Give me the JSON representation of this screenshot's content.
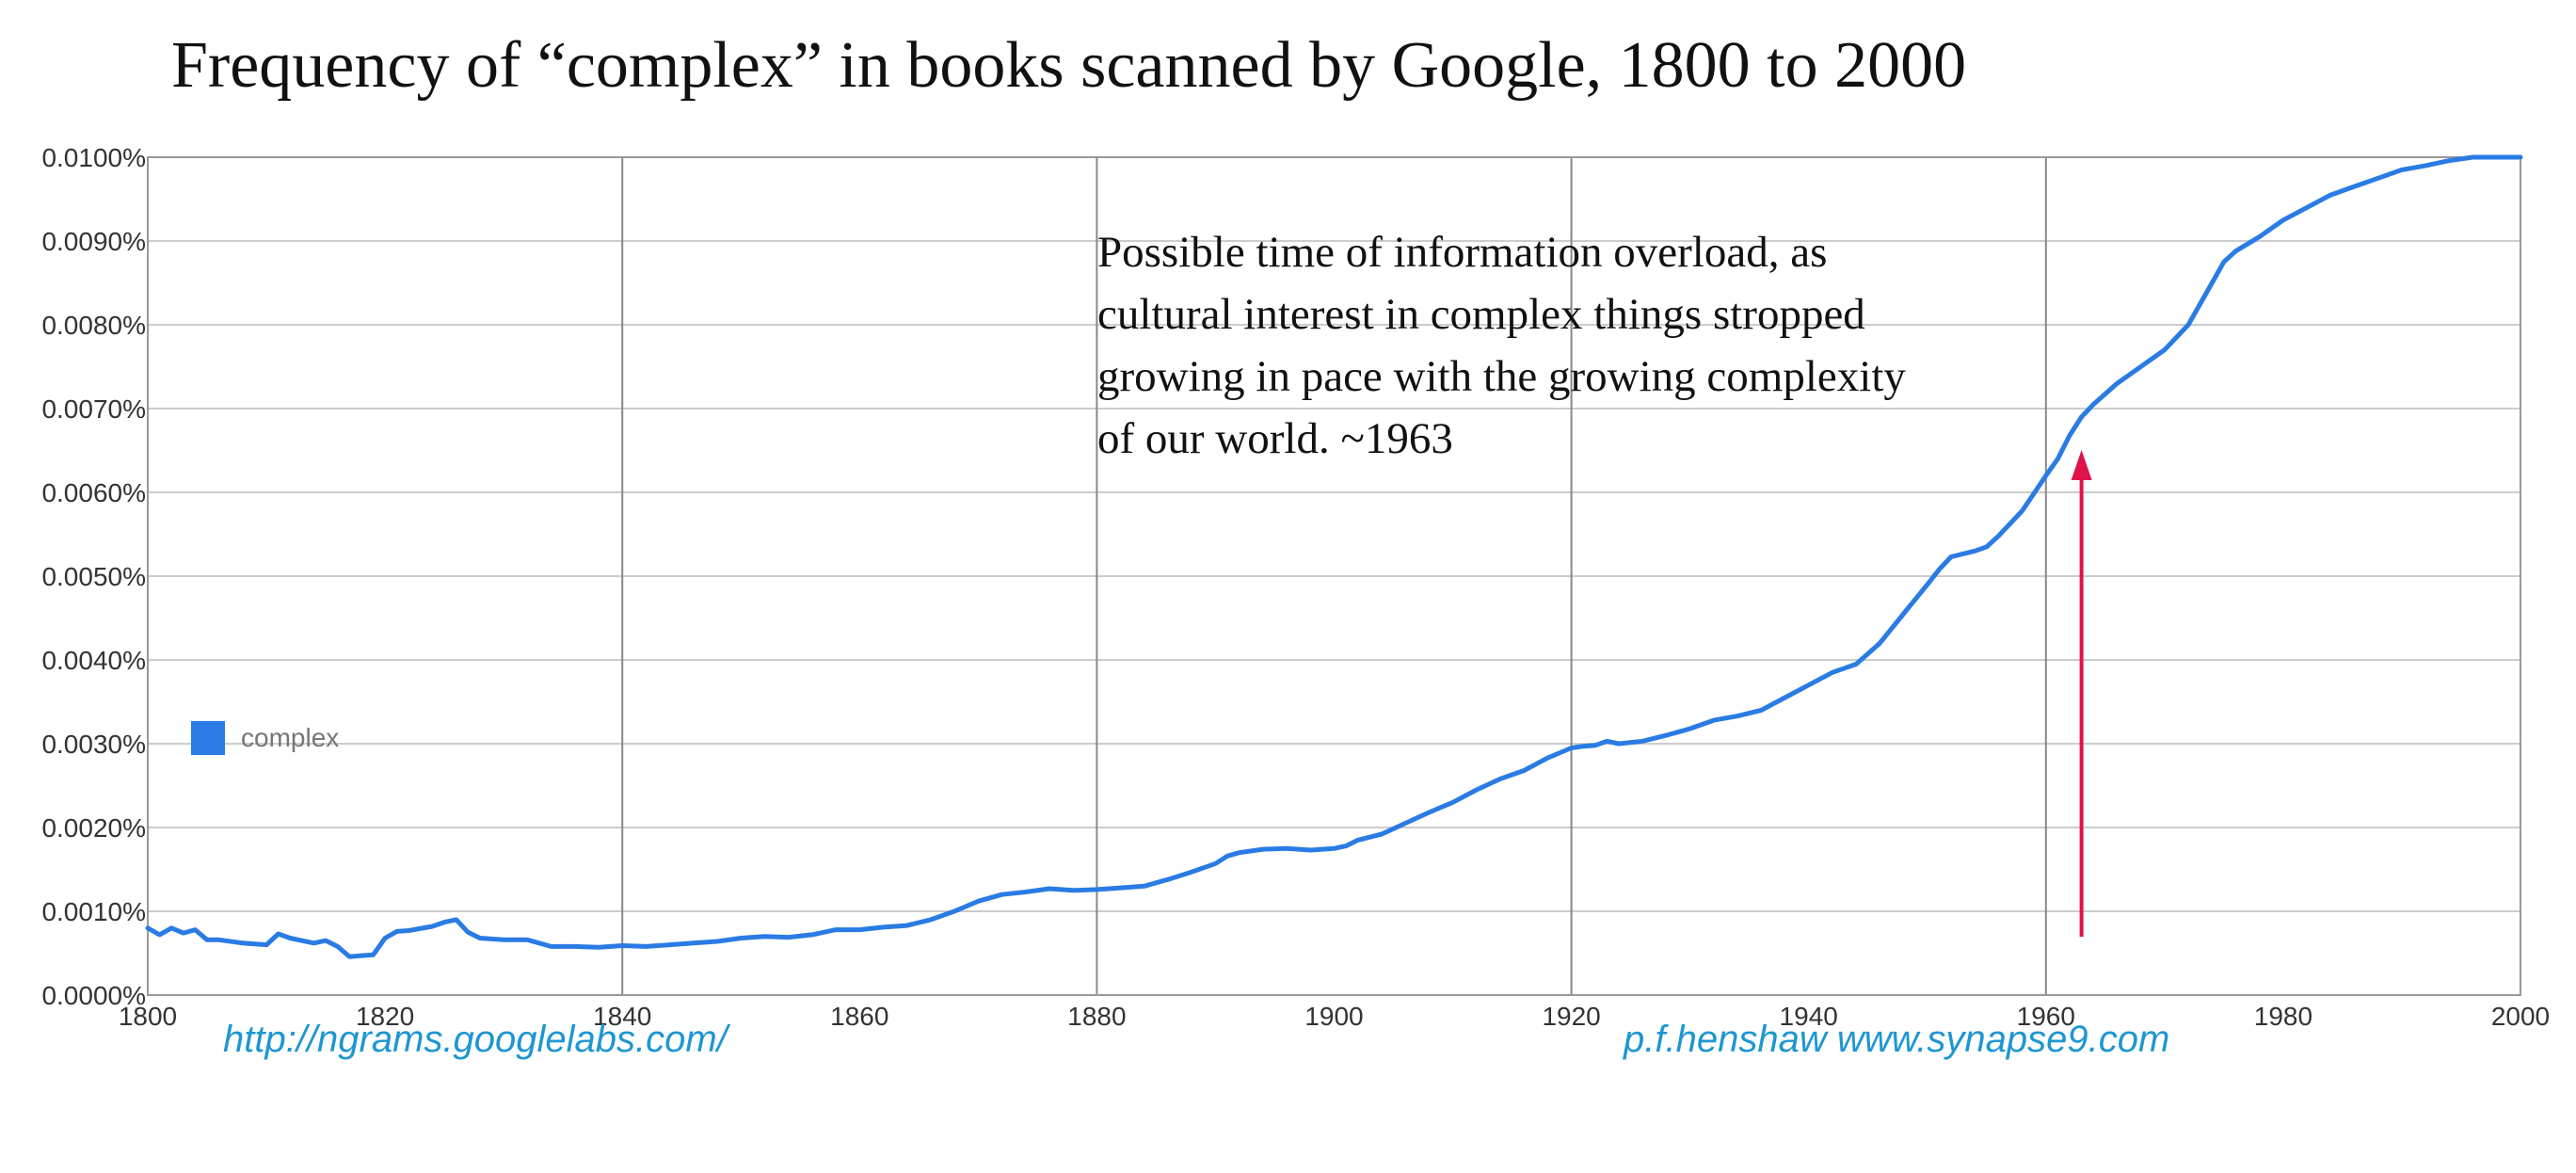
{
  "title": "Frequency of  “complex” in books scanned by Google, 1800 to 2000",
  "annotation": {
    "lines": [
      "Possible time of information overload, as",
      "cultural interest in complex things stropped",
      "growing in pace with the growing complexity",
      "of our world.   ~1963"
    ],
    "arrow_year": 1963,
    "arrow_color": "#e0124a"
  },
  "source_link": "http://ngrams.googlelabs.com/",
  "credit_link": "p.f.henshaw www.synapse9.com",
  "link_color": "#1e96d2",
  "chart_data": {
    "type": "line",
    "title": "Frequency of  “complex” in books scanned by Google, 1800 to 2000",
    "xlabel": "",
    "ylabel": "",
    "xlim": [
      1800,
      2000
    ],
    "ylim": [
      0,
      0.01
    ],
    "grid": true,
    "legend": {
      "position": "left-middle",
      "entries": [
        "complex"
      ]
    },
    "x_ticks": [
      1800,
      1820,
      1840,
      1860,
      1880,
      1900,
      1920,
      1940,
      1960,
      1980,
      2000
    ],
    "x_tick_labels": [
      "1800",
      "1820",
      "1840",
      "1860",
      "1880",
      "1900",
      "1920",
      "1940",
      "1960",
      "1980",
      "2000"
    ],
    "y_ticks": [
      0,
      0.001,
      0.002,
      0.003,
      0.004,
      0.005,
      0.006,
      0.007,
      0.008,
      0.009,
      0.01
    ],
    "y_tick_labels": [
      "0.0000%",
      "0.0010%",
      "0.0020%",
      "0.0030%",
      "0.0040%",
      "0.0050%",
      "0.0060%",
      "0.0070%",
      "0.0080%",
      "0.0090%",
      "0.0100%"
    ],
    "series": [
      {
        "name": "complex",
        "color": "#2a7be4",
        "x": [
          1800,
          1801,
          1802,
          1803,
          1804,
          1805,
          1806,
          1808,
          1810,
          1811,
          1812,
          1814,
          1815,
          1816,
          1817,
          1819,
          1820,
          1821,
          1822,
          1824,
          1825,
          1826,
          1827,
          1828,
          1830,
          1832,
          1834,
          1836,
          1838,
          1840,
          1842,
          1844,
          1846,
          1848,
          1850,
          1852,
          1854,
          1856,
          1858,
          1860,
          1862,
          1864,
          1866,
          1868,
          1870,
          1872,
          1874,
          1876,
          1878,
          1880,
          1882,
          1884,
          1886,
          1888,
          1890,
          1891,
          1892,
          1894,
          1896,
          1898,
          1900,
          1901,
          1902,
          1904,
          1906,
          1908,
          1910,
          1912,
          1914,
          1916,
          1918,
          1920,
          1921,
          1922,
          1923,
          1924,
          1926,
          1928,
          1930,
          1932,
          1934,
          1936,
          1938,
          1940,
          1942,
          1944,
          1946,
          1948,
          1950,
          1951,
          1952,
          1954,
          1955,
          1956,
          1958,
          1960,
          1961,
          1962,
          1963,
          1964,
          1966,
          1968,
          1970,
          1972,
          1974,
          1975,
          1976,
          1978,
          1980,
          1982,
          1984,
          1986,
          1988,
          1990,
          1992,
          1994,
          1996,
          1998,
          2000
        ],
        "values": [
          0.0008,
          0.00072,
          0.0008,
          0.00074,
          0.00078,
          0.00066,
          0.00066,
          0.00062,
          0.0006,
          0.00073,
          0.00068,
          0.00062,
          0.00065,
          0.00058,
          0.00046,
          0.00048,
          0.00068,
          0.00076,
          0.00077,
          0.00082,
          0.00087,
          0.0009,
          0.00075,
          0.00068,
          0.00066,
          0.00066,
          0.00058,
          0.00058,
          0.00057,
          0.00059,
          0.00058,
          0.0006,
          0.00062,
          0.00064,
          0.00068,
          0.0007,
          0.00069,
          0.00072,
          0.00078,
          0.00078,
          0.00081,
          0.00083,
          0.0009,
          0.001,
          0.00112,
          0.0012,
          0.00123,
          0.00127,
          0.00125,
          0.00126,
          0.00128,
          0.0013,
          0.00138,
          0.00147,
          0.00157,
          0.00166,
          0.0017,
          0.00174,
          0.00175,
          0.00173,
          0.00175,
          0.00178,
          0.00185,
          0.00192,
          0.00205,
          0.00218,
          0.0023,
          0.00245,
          0.00258,
          0.00268,
          0.00283,
          0.00295,
          0.00297,
          0.00298,
          0.00303,
          0.003,
          0.00303,
          0.0031,
          0.00318,
          0.00328,
          0.00333,
          0.0034,
          0.00355,
          0.0037,
          0.00385,
          0.00395,
          0.0042,
          0.00455,
          0.0049,
          0.00508,
          0.00523,
          0.0053,
          0.00535,
          0.00548,
          0.00578,
          0.0062,
          0.0064,
          0.00668,
          0.0069,
          0.00705,
          0.0073,
          0.0075,
          0.0077,
          0.008,
          0.0085,
          0.00875,
          0.00888,
          0.00905,
          0.00925,
          0.0094,
          0.00955,
          0.00965,
          0.00975,
          0.00985,
          0.0099,
          0.00996,
          0.01,
          0.01,
          0.01
        ]
      }
    ]
  }
}
